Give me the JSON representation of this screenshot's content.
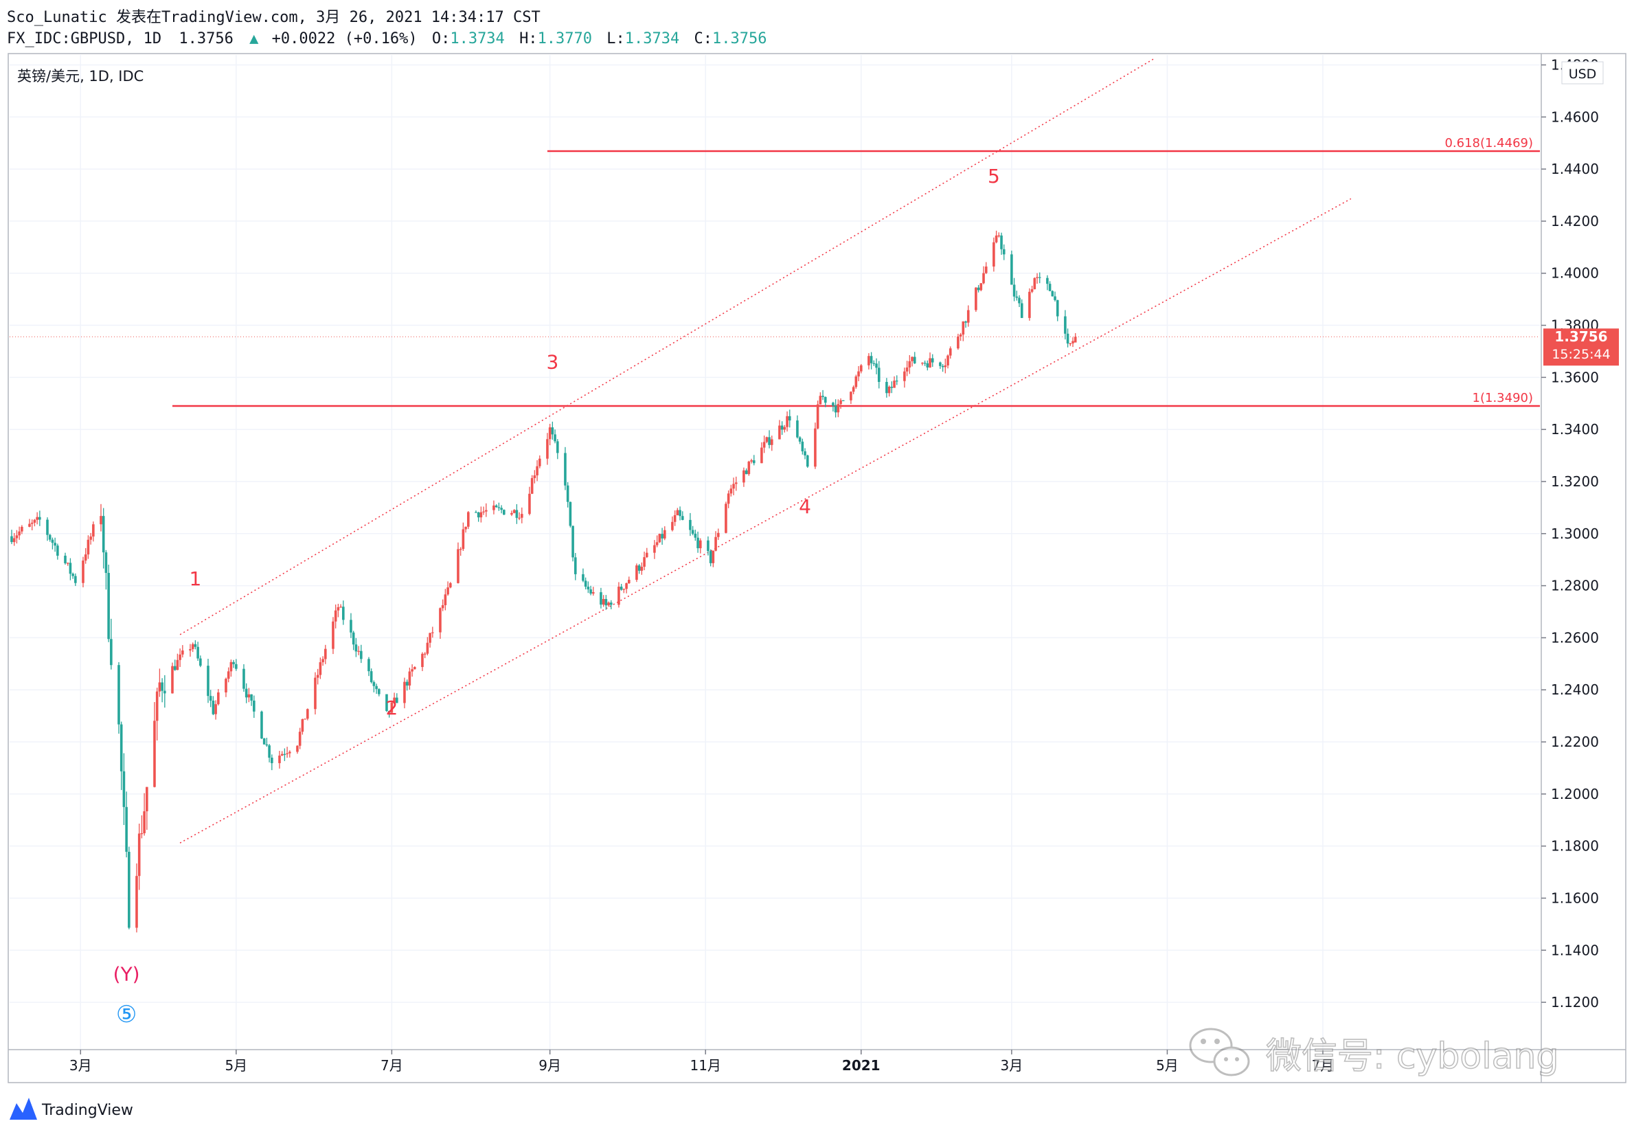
{
  "header": {
    "line1": "Sco_Lunatic 发表在TradingView.com, 3月 26, 2021 14:34:17 CST",
    "symbol": "FX_IDC:GBPUSD, 1D",
    "last": "1.3756",
    "arrow": "▲",
    "change": "+0.0022 (+0.16%)",
    "o_label": "O:",
    "o_value": "1.3734",
    "h_label": "H:",
    "h_value": "1.3770",
    "l_label": "L:",
    "l_value": "1.3734",
    "c_label": "C:",
    "c_value": "1.3756"
  },
  "pane_label": "英镑/美元, 1D, IDC",
  "currency_label": "USD",
  "price_badge": {
    "price": "1.3756",
    "countdown": "15:25:44"
  },
  "footer": {
    "brand": "TradingView",
    "watermark": "微信号: cybolang"
  },
  "colors": {
    "up": "#ef5350",
    "down": "#26a69a",
    "annotation": "#f23645",
    "wave_y": "#e91e63",
    "wave_5_circle": "#2196f3",
    "grid": "#f0f3fa",
    "axis_text": "#131722",
    "header_value": "#26a69a"
  },
  "chart_data": {
    "type": "candlestick",
    "title": "英镑/美元, 1D, IDC",
    "xlabel": "",
    "ylabel": "USD",
    "ylim": [
      1.11,
      1.4862
    ],
    "x_ticks": [
      "3月",
      "5月",
      "7月",
      "9月",
      "11月",
      "2021",
      "3月",
      "5月",
      "7月"
    ],
    "y_ticks": [
      "1.1200",
      "1.1400",
      "1.1600",
      "1.1800",
      "1.2000",
      "1.2200",
      "1.2400",
      "1.2600",
      "1.2800",
      "1.3000",
      "1.3200",
      "1.3400",
      "1.3600",
      "1.3800",
      "1.4000",
      "1.4200",
      "1.4400",
      "1.4600",
      "1.4800"
    ],
    "grid": true,
    "series": [
      {
        "name": "GBPUSD",
        "anchors": [
          [
            "2020-02-03",
            1.299
          ],
          [
            "2020-02-14",
            1.305
          ],
          [
            "2020-02-28",
            1.282
          ],
          [
            "2020-03-09",
            1.31
          ],
          [
            "2020-03-12",
            1.265
          ],
          [
            "2020-03-16",
            1.225
          ],
          [
            "2020-03-20",
            1.155
          ],
          [
            "2020-03-26",
            1.195
          ],
          [
            "2020-04-01",
            1.242
          ],
          [
            "2020-04-14",
            1.258
          ],
          [
            "2020-04-22",
            1.232
          ],
          [
            "2020-04-30",
            1.252
          ],
          [
            "2020-05-15",
            1.213
          ],
          [
            "2020-05-25",
            1.22
          ],
          [
            "2020-06-10",
            1.272
          ],
          [
            "2020-06-29",
            1.23
          ],
          [
            "2020-07-14",
            1.255
          ],
          [
            "2020-07-24",
            1.28
          ],
          [
            "2020-07-31",
            1.308
          ],
          [
            "2020-08-14",
            1.309
          ],
          [
            "2020-08-21",
            1.308
          ],
          [
            "2020-08-27",
            1.327
          ],
          [
            "2020-09-01",
            1.34
          ],
          [
            "2020-09-07",
            1.32
          ],
          [
            "2020-09-11",
            1.283
          ],
          [
            "2020-09-23",
            1.272
          ],
          [
            "2020-10-09",
            1.291
          ],
          [
            "2020-10-21",
            1.307
          ],
          [
            "2020-11-03",
            1.29
          ],
          [
            "2020-11-10",
            1.316
          ],
          [
            "2020-11-25",
            1.335
          ],
          [
            "2020-12-04",
            1.345
          ],
          [
            "2020-12-11",
            1.325
          ],
          [
            "2020-12-16",
            1.353
          ],
          [
            "2020-12-23",
            1.348
          ],
          [
            "2021-01-04",
            1.368
          ],
          [
            "2021-01-11",
            1.353
          ],
          [
            "2021-01-19",
            1.366
          ],
          [
            "2021-02-03",
            1.366
          ],
          [
            "2021-02-12",
            1.385
          ],
          [
            "2021-02-24",
            1.415
          ],
          [
            "2021-03-01",
            1.394
          ],
          [
            "2021-03-05",
            1.385
          ],
          [
            "2021-03-10",
            1.398
          ],
          [
            "2021-03-17",
            1.393
          ],
          [
            "2021-03-23",
            1.371
          ],
          [
            "2021-03-26",
            1.3756
          ]
        ]
      }
    ],
    "horizontal_levels": [
      {
        "label": "0.618(1.4469)",
        "value": 1.4469
      },
      {
        "label": "1(1.3490)",
        "value": 1.349
      }
    ],
    "last_price": 1.3756,
    "channel": {
      "upper": [
        [
          "2020-04-09",
          1.2612
        ],
        [
          "2021-04-26",
          1.4825
        ]
      ],
      "lower": [
        [
          "2020-04-09",
          1.1812
        ],
        [
          "2021-07-12",
          1.4286
        ]
      ]
    },
    "wave_labels": [
      {
        "text": "1",
        "date": "2020-04-15",
        "price": 1.2802
      },
      {
        "text": "2",
        "date": "2020-07-01",
        "price": 1.2306
      },
      {
        "text": "3",
        "date": "2020-09-02",
        "price": 1.3634
      },
      {
        "text": "4",
        "date": "2020-12-10",
        "price": 1.3078
      },
      {
        "text": "5",
        "date": "2021-02-22",
        "price": 1.4348
      },
      {
        "text": "(Y)",
        "date": "2020-03-19",
        "price": 1.1284
      },
      {
        "text": "⑤",
        "date": "2020-03-19",
        "price": 1.1124
      }
    ]
  }
}
